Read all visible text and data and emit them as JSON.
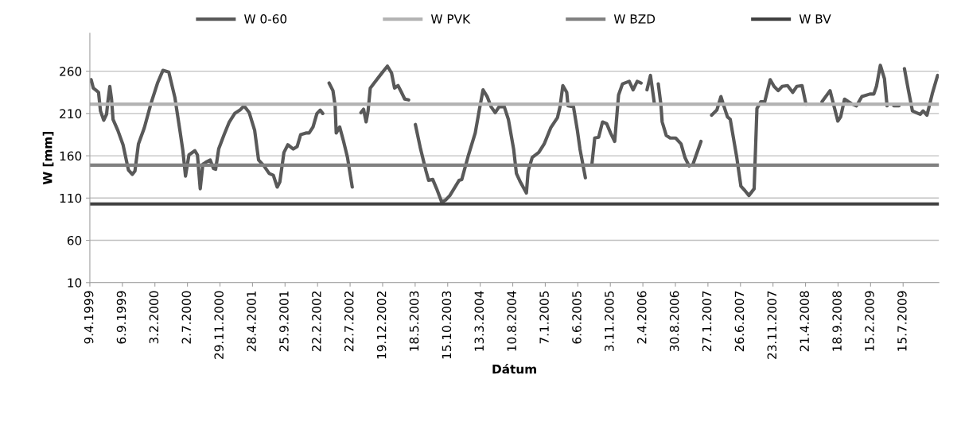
{
  "chart_data": {
    "type": "line",
    "xlabel": "Dátum",
    "ylabel": "W [mm]",
    "xlim": [
      "1999-04-09",
      "2009-12-27"
    ],
    "ylim": [
      10,
      305
    ],
    "yticks": [
      10,
      60,
      110,
      160,
      210,
      260
    ],
    "xticks": [
      {
        "value": "1999-04-09",
        "label": "9.4.1999"
      },
      {
        "value": "1999-09-06",
        "label": "6.9.1999"
      },
      {
        "value": "2000-02-03",
        "label": "3.2.2000"
      },
      {
        "value": "2000-07-02",
        "label": "2.7.2000"
      },
      {
        "value": "2000-11-29",
        "label": "29.11.2000"
      },
      {
        "value": "2001-04-28",
        "label": "28.4.2001"
      },
      {
        "value": "2001-09-25",
        "label": "25.9.2001"
      },
      {
        "value": "2002-02-22",
        "label": "22.2.2002"
      },
      {
        "value": "2002-07-22",
        "label": "22.7.2002"
      },
      {
        "value": "2002-12-19",
        "label": "19.12.2002"
      },
      {
        "value": "2003-05-18",
        "label": "18.5.2003"
      },
      {
        "value": "2003-10-15",
        "label": "15.10.2003"
      },
      {
        "value": "2004-03-13",
        "label": "13.3.2004"
      },
      {
        "value": "2004-08-10",
        "label": "10.8.2004"
      },
      {
        "value": "2005-01-07",
        "label": "7.1.2005"
      },
      {
        "value": "2005-06-06",
        "label": "6.6.2005"
      },
      {
        "value": "2005-11-03",
        "label": "3.11.2005"
      },
      {
        "value": "2006-04-02",
        "label": "2.4.2006"
      },
      {
        "value": "2006-08-30",
        "label": "30.8.2006"
      },
      {
        "value": "2007-01-27",
        "label": "27.1.2007"
      },
      {
        "value": "2007-06-26",
        "label": "26.6.2007"
      },
      {
        "value": "2007-11-23",
        "label": "23.11.2007"
      },
      {
        "value": "2008-04-21",
        "label": "21.4.2008"
      },
      {
        "value": "2008-09-18",
        "label": "18.9.2008"
      },
      {
        "value": "2009-02-15",
        "label": "15.2.2009"
      },
      {
        "value": "2009-07-15",
        "label": "15.7.2009"
      }
    ],
    "grid": "y",
    "legend": "top",
    "marker": "none",
    "line_style": "solid",
    "series": [
      {
        "name": "W 0-60",
        "color": "#595959",
        "x": [
          "1999-04-09",
          "1999-04-15",
          "1999-04-25",
          "1999-05-10",
          "1999-05-19",
          "1999-05-28",
          "1999-06-12",
          "1999-06-25",
          "1999-07-01",
          "1999-07-10",
          "1999-07-18",
          "1999-07-25",
          "1999-08-16",
          "1999-09-09",
          "1999-10-04",
          "1999-10-22",
          "1999-11-03",
          "1999-11-19",
          "1999-12-16",
          "2000-01-16",
          "2000-02-15",
          "2000-03-11",
          "2000-04-07",
          "2000-05-05",
          "2000-05-30",
          "2000-06-11",
          "2000-06-23",
          "2000-07-09",
          "2000-08-05",
          "2000-08-17",
          "2000-08-30",
          "2000-09-11",
          "2000-09-29",
          "2000-10-15",
          "2000-10-30",
          "2000-11-09",
          "2000-11-23",
          "2000-12-18",
          "2001-01-11",
          "2001-02-05",
          "2001-03-01",
          "2001-03-20",
          "2001-04-13",
          "2001-05-08",
          "2001-05-26",
          "2001-06-20",
          "2001-07-14",
          "2001-08-02",
          "2001-08-20",
          "2001-09-01",
          "2001-09-20",
          "2001-10-08",
          "2001-11-02",
          "2001-11-20",
          "2001-12-06",
          "2002-01-02",
          "2002-01-14",
          "2002-02-01",
          "2002-02-19",
          "2002-03-06",
          "2002-03-18",
          "2002-04-01",
          "2002-04-16",
          "2002-05-04",
          "2002-05-14",
          "2002-05-19",
          "2002-06-04",
          "2002-06-22",
          "2002-07-10",
          "2002-08-01",
          "2002-08-20",
          "2002-09-10",
          "2002-09-22",
          "2002-10-04",
          "2002-10-13",
          "2002-10-23",
          "2002-11-10",
          "2002-12-10",
          "2003-01-10",
          "2003-01-29",
          "2003-02-12",
          "2003-02-28",
          "2003-03-16",
          "2003-03-31",
          "2003-04-18",
          "2003-05-05",
          "2003-05-19",
          "2003-06-12",
          "2003-07-07",
          "2003-07-19",
          "2003-08-07",
          "2003-08-25",
          "2003-09-18",
          "2003-10-07",
          "2003-10-25",
          "2003-11-13",
          "2003-12-07",
          "2003-12-19",
          "2004-01-19",
          "2004-02-19",
          "2004-03-08",
          "2004-03-26",
          "2004-04-14",
          "2004-05-02",
          "2004-05-21",
          "2004-06-08",
          "2004-07-02",
          "2004-07-21",
          "2004-08-14",
          "2004-08-27",
          "2004-09-14",
          "2004-10-12",
          "2004-10-20",
          "2004-11-08",
          "2004-12-08",
          "2005-01-02",
          "2005-02-01",
          "2005-03-04",
          "2005-03-16",
          "2005-03-29",
          "2005-04-16",
          "2005-04-22",
          "2005-05-17",
          "2005-06-04",
          "2005-06-16",
          "2005-07-11",
          "2005-07-25",
          "2005-08-10",
          "2005-08-23",
          "2005-09-10",
          "2005-09-28",
          "2005-10-17",
          "2005-11-04",
          "2005-11-23",
          "2005-12-11",
          "2005-12-29",
          "2006-01-29",
          "2006-02-16",
          "2006-03-07",
          "2006-03-25",
          "2006-04-10",
          "2006-04-21",
          "2006-05-07",
          "2006-05-25",
          "2006-06-03",
          "2006-06-12",
          "2006-06-24",
          "2006-06-30",
          "2006-07-19",
          "2006-08-06",
          "2006-08-31",
          "2006-09-25",
          "2006-10-13",
          "2006-11-01",
          "2006-11-19",
          "2006-12-26",
          "2007-01-20",
          "2007-02-13",
          "2007-03-09",
          "2007-03-28",
          "2007-04-09",
          "2007-04-27",
          "2007-05-10",
          "2007-05-28",
          "2007-06-09",
          "2007-06-28",
          "2007-07-16",
          "2007-08-04",
          "2007-08-28",
          "2007-09-10",
          "2007-09-28",
          "2007-10-16",
          "2007-11-10",
          "2007-11-28",
          "2007-12-17",
          "2008-01-04",
          "2008-01-29",
          "2008-02-22",
          "2008-03-12",
          "2008-04-05",
          "2008-04-23",
          "2008-05-30",
          "2008-07-06",
          "2008-08-12",
          "2008-08-30",
          "2008-09-17",
          "2008-09-30",
          "2008-10-18",
          "2008-11-05",
          "2008-11-24",
          "2008-12-12",
          "2009-01-06",
          "2009-02-12",
          "2009-03-02",
          "2009-03-14",
          "2009-04-01",
          "2009-04-20",
          "2009-05-02",
          "2009-05-15",
          "2009-06-02",
          "2009-06-26",
          "2009-07-10",
          "2009-07-21",
          "2009-08-08",
          "2009-08-27",
          "2009-09-14",
          "2009-10-02",
          "2009-10-15",
          "2009-11-02",
          "2009-11-26",
          "2009-12-21"
        ],
        "values": [
          248,
          250,
          240,
          237,
          235,
          213,
          202,
          209,
          224,
          242,
          227,
          203,
          190,
          173,
          143,
          138,
          142,
          174,
          193,
          222,
          246,
          261,
          259,
          229,
          187,
          166,
          136,
          161,
          166,
          161,
          121,
          150,
          153,
          155,
          145,
          144,
          168,
          185,
          200,
          210,
          214,
          219,
          211,
          190,
          155,
          148,
          139,
          137,
          123,
          129,
          164,
          173,
          168,
          171,
          185,
          187,
          187,
          194,
          210,
          214,
          210,
          null,
          246,
          237,
          219,
          187,
          194,
          177,
          158,
          123,
          null,
          211,
          215,
          200,
          213,
          240,
          246,
          256,
          266,
          258,
          240,
          243,
          235,
          227,
          226,
          null,
          197,
          168,
          142,
          131,
          132,
          121,
          105,
          108,
          113,
          121,
          131,
          132,
          161,
          187,
          213,
          238,
          230,
          218,
          211,
          218,
          218,
          203,
          168,
          139,
          129,
          116,
          142,
          158,
          164,
          174,
          193,
          205,
          218,
          243,
          235,
          219,
          218,
          190,
          168,
          134,
          null,
          150,
          181,
          182,
          200,
          198,
          187,
          177,
          232,
          245,
          248,
          238,
          248,
          246,
          null,
          238,
          255,
          222,
          null,
          245,
          221,
          200,
          184,
          181,
          181,
          174,
          158,
          148,
          150,
          177,
          null,
          208,
          214,
          230,
          220,
          206,
          203,
          176,
          158,
          124,
          119,
          113,
          121,
          216,
          224,
          224,
          250,
          242,
          237,
          242,
          243,
          235,
          242,
          243,
          221,
          null,
          224,
          237,
          219,
          201,
          206,
          227,
          224,
          221,
          219,
          230,
          233,
          233,
          242,
          267,
          251,
          219,
          null,
          219,
          219,
          null,
          263,
          238,
          213,
          211,
          209,
          213,
          208,
          233,
          255
        ]
      },
      {
        "name": "W PVK",
        "color": "#b3b3b3",
        "x": [
          "1999-04-09",
          "2009-12-27"
        ],
        "values": [
          221,
          221
        ]
      },
      {
        "name": "W BZD",
        "color": "#808080",
        "x": [
          "1999-04-09",
          "2009-12-27"
        ],
        "values": [
          149,
          149
        ]
      },
      {
        "name": "W BV",
        "color": "#404040",
        "x": [
          "1999-04-09",
          "2009-12-27"
        ],
        "values": [
          103,
          103
        ]
      }
    ]
  }
}
